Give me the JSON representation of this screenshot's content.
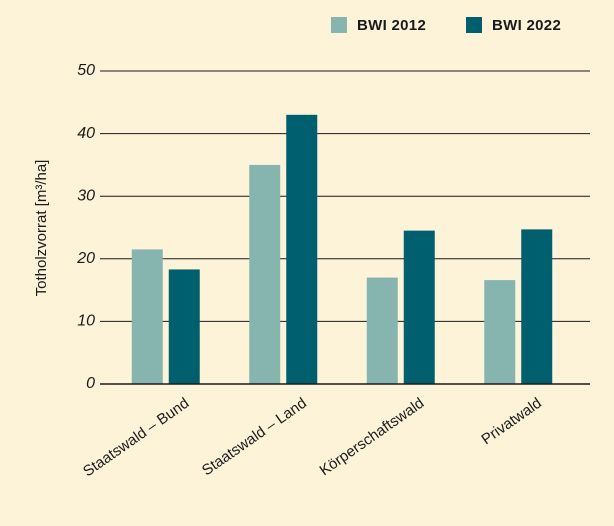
{
  "chart_data": {
    "type": "bar",
    "y_label": "Totholzvorrat [m³/ha]",
    "categories": [
      "Staatswald – Bund",
      "Staatswald – Land",
      "Körperschaftswald",
      "Privatwald"
    ],
    "series": [
      {
        "name": "BWI 2012",
        "color": "#86b5b0",
        "values": [
          21.5,
          35,
          17,
          16.6
        ]
      },
      {
        "name": "BWI 2022",
        "color": "#005f6e",
        "values": [
          18.3,
          43,
          24.5,
          24.7
        ]
      }
    ],
    "ylim": [
      0,
      50
    ],
    "yticks": [
      0,
      10,
      20,
      30,
      40,
      50
    ],
    "grid": true,
    "legend": "top-right"
  }
}
